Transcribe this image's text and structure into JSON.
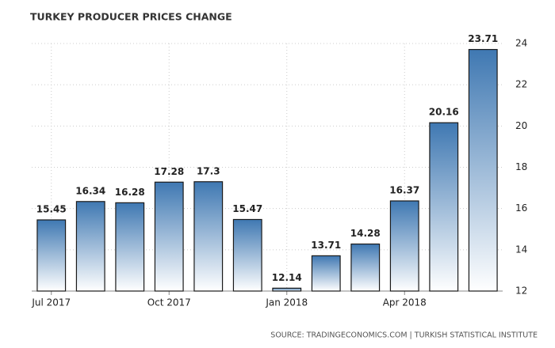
{
  "chart_data": {
    "type": "bar",
    "title": "TURKEY PRODUCER PRICES CHANGE",
    "source": "SOURCE: TRADINGECONOMICS.COM | TURKISH STATISTICAL INSTITUTE",
    "categories": [
      "Jul 2017",
      null,
      null,
      "Oct 2017",
      null,
      null,
      "Jan 2018",
      null,
      null,
      "Apr 2018",
      null,
      null
    ],
    "values": [
      15.45,
      16.34,
      16.28,
      17.28,
      17.3,
      15.47,
      12.14,
      13.71,
      14.28,
      16.37,
      20.16,
      23.71
    ],
    "color": "#3f78b2",
    "ylim": [
      12,
      24
    ],
    "yticks": [
      12,
      14,
      16,
      18,
      20,
      22,
      24
    ],
    "grid": true
  }
}
